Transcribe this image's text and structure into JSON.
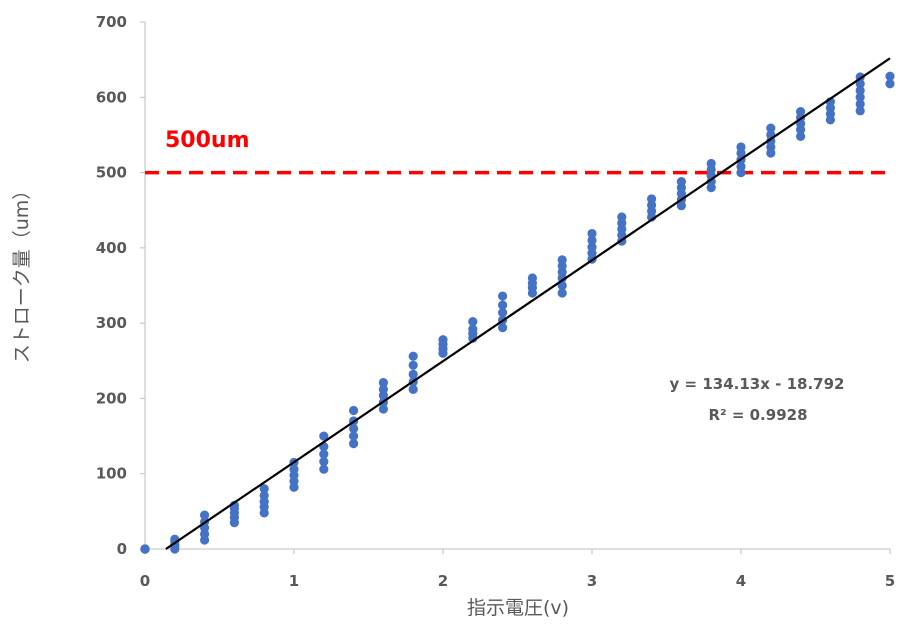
{
  "chart_data": {
    "type": "scatter",
    "xlabel": "指示電圧(v)",
    "ylabel": "ストローク量（um）",
    "xlim": [
      0,
      5
    ],
    "ylim": [
      0,
      700
    ],
    "x_ticks": [
      0,
      1,
      2,
      3,
      4,
      5
    ],
    "y_ticks": [
      0,
      100,
      200,
      300,
      400,
      500,
      600,
      700
    ],
    "x_tick_labels": [
      "0",
      "1",
      "2",
      "3",
      "4",
      "5"
    ],
    "y_tick_labels": [
      "0",
      "100",
      "200",
      "300",
      "400",
      "500",
      "600",
      "700"
    ],
    "grid": false,
    "legend": "none",
    "series": [
      {
        "marker_color": "#4472C4",
        "points": [
          [
            0,
            0
          ],
          [
            0,
            0
          ],
          [
            0,
            0
          ],
          [
            0,
            0
          ],
          [
            0.2,
            0
          ],
          [
            0.2,
            3
          ],
          [
            0.2,
            6
          ],
          [
            0.2,
            10
          ],
          [
            0.2,
            13
          ],
          [
            0.4,
            12
          ],
          [
            0.4,
            20
          ],
          [
            0.4,
            28
          ],
          [
            0.4,
            36
          ],
          [
            0.4,
            45
          ],
          [
            0.6,
            35
          ],
          [
            0.6,
            42
          ],
          [
            0.6,
            48
          ],
          [
            0.6,
            54
          ],
          [
            0.6,
            58
          ],
          [
            0.8,
            48
          ],
          [
            0.8,
            56
          ],
          [
            0.8,
            63
          ],
          [
            0.8,
            71
          ],
          [
            0.8,
            80
          ],
          [
            1.0,
            82
          ],
          [
            1.0,
            90
          ],
          [
            1.0,
            98
          ],
          [
            1.0,
            106
          ],
          [
            1.0,
            115
          ],
          [
            1.2,
            106
          ],
          [
            1.2,
            116
          ],
          [
            1.2,
            126
          ],
          [
            1.2,
            136
          ],
          [
            1.2,
            150
          ],
          [
            1.4,
            140
          ],
          [
            1.4,
            150
          ],
          [
            1.4,
            160
          ],
          [
            1.4,
            170
          ],
          [
            1.4,
            184
          ],
          [
            1.6,
            186
          ],
          [
            1.6,
            195
          ],
          [
            1.6,
            204
          ],
          [
            1.6,
            212
          ],
          [
            1.6,
            221
          ],
          [
            1.8,
            212
          ],
          [
            1.8,
            222
          ],
          [
            1.8,
            232
          ],
          [
            1.8,
            244
          ],
          [
            1.8,
            256
          ],
          [
            2.0,
            260
          ],
          [
            2.0,
            266
          ],
          [
            2.0,
            272
          ],
          [
            2.0,
            278
          ],
          [
            2.2,
            280
          ],
          [
            2.2,
            286
          ],
          [
            2.2,
            292
          ],
          [
            2.2,
            302
          ],
          [
            2.4,
            294
          ],
          [
            2.4,
            304
          ],
          [
            2.4,
            314
          ],
          [
            2.4,
            324
          ],
          [
            2.4,
            336
          ],
          [
            2.6,
            340
          ],
          [
            2.6,
            347
          ],
          [
            2.6,
            353
          ],
          [
            2.6,
            360
          ],
          [
            2.8,
            340
          ],
          [
            2.8,
            350
          ],
          [
            2.8,
            360
          ],
          [
            2.8,
            368
          ],
          [
            2.8,
            376
          ],
          [
            2.8,
            384
          ],
          [
            3.0,
            385
          ],
          [
            3.0,
            393
          ],
          [
            3.0,
            401
          ],
          [
            3.0,
            410
          ],
          [
            3.0,
            419
          ],
          [
            3.2,
            409
          ],
          [
            3.2,
            417
          ],
          [
            3.2,
            425
          ],
          [
            3.2,
            433
          ],
          [
            3.2,
            441
          ],
          [
            3.4,
            441
          ],
          [
            3.4,
            449
          ],
          [
            3.4,
            457
          ],
          [
            3.4,
            465
          ],
          [
            3.6,
            456
          ],
          [
            3.6,
            464
          ],
          [
            3.6,
            472
          ],
          [
            3.6,
            480
          ],
          [
            3.6,
            488
          ],
          [
            3.8,
            480
          ],
          [
            3.8,
            488
          ],
          [
            3.8,
            496
          ],
          [
            3.8,
            504
          ],
          [
            3.8,
            512
          ],
          [
            4.0,
            500
          ],
          [
            4.0,
            508
          ],
          [
            4.0,
            517
          ],
          [
            4.0,
            526
          ],
          [
            4.0,
            534
          ],
          [
            4.2,
            526
          ],
          [
            4.2,
            534
          ],
          [
            4.2,
            542
          ],
          [
            4.2,
            550
          ],
          [
            4.2,
            559
          ],
          [
            4.4,
            548
          ],
          [
            4.4,
            557
          ],
          [
            4.4,
            565
          ],
          [
            4.4,
            573
          ],
          [
            4.4,
            581
          ],
          [
            4.6,
            570
          ],
          [
            4.6,
            578
          ],
          [
            4.6,
            586
          ],
          [
            4.6,
            594
          ],
          [
            4.8,
            582
          ],
          [
            4.8,
            591
          ],
          [
            4.8,
            600
          ],
          [
            4.8,
            609
          ],
          [
            4.8,
            618
          ],
          [
            4.8,
            627
          ],
          [
            5.0,
            618
          ],
          [
            5.0,
            628
          ]
        ]
      }
    ],
    "trendline": {
      "slope": 134.13,
      "intercept": -18.792,
      "color": "#000000",
      "equation": "y = 134.13x - 18.792",
      "r2_label": "R² = 0.9928"
    },
    "reference_line": {
      "y": 500,
      "label": "500um",
      "color": "#FF0000",
      "style": "dashed"
    }
  }
}
